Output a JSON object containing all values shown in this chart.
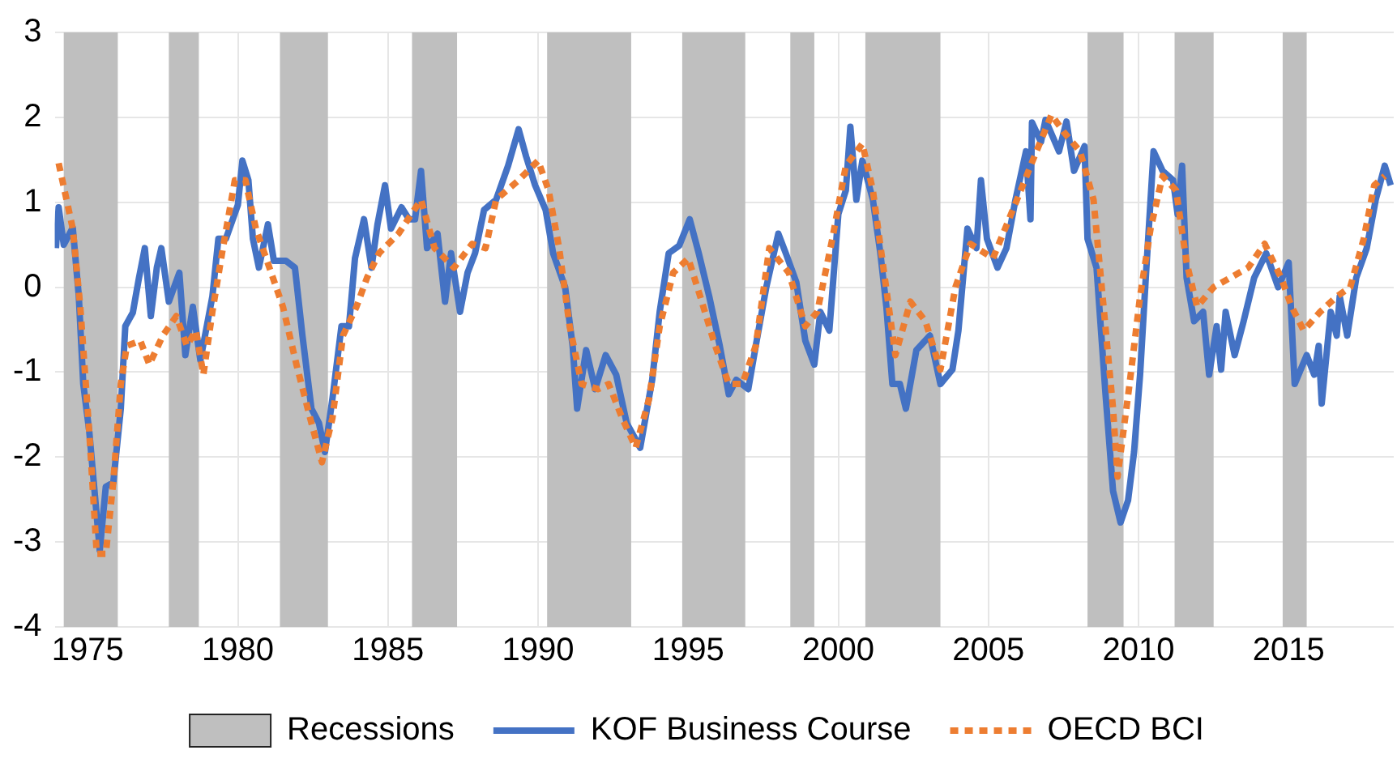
{
  "chart_data": {
    "type": "line",
    "xlim": [
      1973.9,
      2018.5
    ],
    "xticks": [
      1975,
      1980,
      1985,
      1990,
      1995,
      2000,
      2005,
      2010,
      2015
    ],
    "ylim": [
      -4,
      3
    ],
    "yticks": [
      -4,
      -3,
      -2,
      -1,
      0,
      1,
      2,
      3
    ],
    "grid": true,
    "legend": "bottom",
    "marker": "none",
    "bands": [
      {
        "axis": "x",
        "from": 1974.2,
        "to": 1976.0,
        "label": "Recessions",
        "color": "#bfbfbf"
      },
      {
        "axis": "x",
        "from": 1977.7,
        "to": 1978.7,
        "color": "#bfbfbf"
      },
      {
        "axis": "x",
        "from": 1981.4,
        "to": 1983.0,
        "color": "#bfbfbf"
      },
      {
        "axis": "x",
        "from": 1985.8,
        "to": 1987.3,
        "color": "#bfbfbf"
      },
      {
        "axis": "x",
        "from": 1990.3,
        "to": 1993.1,
        "color": "#bfbfbf"
      },
      {
        "axis": "x",
        "from": 1994.8,
        "to": 1996.9,
        "color": "#bfbfbf"
      },
      {
        "axis": "x",
        "from": 1998.4,
        "to": 1999.2,
        "color": "#bfbfbf"
      },
      {
        "axis": "x",
        "from": 2000.9,
        "to": 2003.4,
        "color": "#bfbfbf"
      },
      {
        "axis": "x",
        "from": 2008.3,
        "to": 2009.5,
        "color": "#bfbfbf"
      },
      {
        "axis": "x",
        "from": 2011.2,
        "to": 2012.5,
        "color": "#bfbfbf"
      },
      {
        "axis": "x",
        "from": 2014.8,
        "to": 2015.6,
        "color": "#bfbfbf"
      }
    ],
    "series": [
      {
        "name": "KOF Business Course",
        "color": "#4472c4",
        "line_style": "solid",
        "x": [
          1973.94,
          1974.03,
          1974.2,
          1974.5,
          1974.7,
          1974.85,
          1975.05,
          1975.2,
          1975.4,
          1975.6,
          1975.85,
          1976.1,
          1976.25,
          1976.5,
          1976.7,
          1976.9,
          1977.1,
          1977.3,
          1977.45,
          1977.7,
          1978.05,
          1978.25,
          1978.5,
          1978.75,
          1979.15,
          1979.35,
          1979.6,
          1980,
          1980.15,
          1980.35,
          1980.5,
          1980.7,
          1981,
          1981.2,
          1981.6,
          1981.9,
          1982.15,
          1982.45,
          1982.7,
          1982.9,
          1983.15,
          1983.45,
          1983.7,
          1983.9,
          1984.2,
          1984.45,
          1984.65,
          1984.9,
          1985.1,
          1985.45,
          1985.7,
          1985.9,
          1986.1,
          1986.3,
          1986.65,
          1986.9,
          1987.1,
          1987.4,
          1987.65,
          1987.9,
          1988.2,
          1988.6,
          1989,
          1989.35,
          1989.6,
          1989.9,
          1990.25,
          1990.5,
          1990.9,
          1991.15,
          1991.3,
          1991.6,
          1991.9,
          1992.25,
          1992.6,
          1992.95,
          1993.4,
          1993.8,
          1994.05,
          1994.35,
          1994.7,
          1995.05,
          1995.35,
          1995.7,
          1996.05,
          1996.35,
          1996.6,
          1997,
          1997.25,
          1997.6,
          1998,
          1998.25,
          1998.6,
          1998.9,
          1999.2,
          1999.4,
          1999.7,
          2000,
          2000.25,
          2000.4,
          2000.6,
          2000.8,
          2001.15,
          2001.4,
          2001.6,
          2001.8,
          2002.05,
          2002.25,
          2002.6,
          2003.05,
          2003.4,
          2003.8,
          2004,
          2004.3,
          2004.6,
          2004.75,
          2004.95,
          2005.3,
          2005.6,
          2005.9,
          2006.25,
          2006.4,
          2006.45,
          2006.75,
          2006.9,
          2007.35,
          2007.6,
          2007.85,
          2008.2,
          2008.3,
          2008.6,
          2008.9,
          2009.15,
          2009.4,
          2009.65,
          2009.85,
          2010.05,
          2010.25,
          2010.5,
          2010.8,
          2011.15,
          2011.3,
          2011.45,
          2011.6,
          2011.85,
          2012.15,
          2012.35,
          2012.6,
          2012.75,
          2012.9,
          2013.2,
          2013.5,
          2013.85,
          2014.25,
          2014.65,
          2015,
          2015.2,
          2015.6,
          2015.85,
          2016,
          2016.1,
          2016.4,
          2016.6,
          2016.7,
          2016.95,
          2017.25,
          2017.6,
          2017.9,
          2018.2,
          2018.4
        ],
        "values": [
          0.46,
          0.94,
          0.5,
          0.7,
          -0.1,
          -1.14,
          -1.7,
          -2.3,
          -3.1,
          -2.35,
          -2.3,
          -1.43,
          -0.46,
          -0.3,
          0.1,
          0.46,
          -0.34,
          0.23,
          0.46,
          -0.17,
          0.17,
          -0.8,
          -0.23,
          -0.86,
          -0.11,
          0.57,
          0.57,
          0.97,
          1.49,
          1.26,
          0.57,
          0.23,
          0.74,
          0.31,
          0.31,
          0.23,
          -0.57,
          -1.43,
          -1.6,
          -1.94,
          -1.31,
          -0.46,
          -0.46,
          0.34,
          0.8,
          0.23,
          0.74,
          1.2,
          0.69,
          0.94,
          0.8,
          0.8,
          1.37,
          0.46,
          0.63,
          -0.17,
          0.4,
          -0.29,
          0.17,
          0.4,
          0.91,
          1.03,
          1.43,
          1.86,
          1.54,
          1.2,
          0.91,
          0.4,
          0,
          -0.69,
          -1.43,
          -0.74,
          -1.2,
          -0.8,
          -1.03,
          -1.6,
          -1.89,
          -1.09,
          -0.29,
          0.4,
          0.49,
          0.8,
          0.4,
          -0.11,
          -0.69,
          -1.26,
          -1.09,
          -1.2,
          -0.69,
          0,
          0.63,
          0.4,
          0.06,
          -0.63,
          -0.91,
          -0.29,
          -0.51,
          0.86,
          1.14,
          1.89,
          1.03,
          1.49,
          1.03,
          0.4,
          -0.23,
          -1.14,
          -1.14,
          -1.43,
          -0.74,
          -0.57,
          -1.14,
          -0.97,
          -0.51,
          0.69,
          0.46,
          1.26,
          0.57,
          0.23,
          0.46,
          1.03,
          1.6,
          0.8,
          1.94,
          1.71,
          1.97,
          1.6,
          1.95,
          1.37,
          1.66,
          0.57,
          0.23,
          -1.26,
          -2.4,
          -2.77,
          -2.51,
          -1.94,
          -1.03,
          0.17,
          1.6,
          1.37,
          1.26,
          0.86,
          1.43,
          0.11,
          -0.4,
          -0.29,
          -1.03,
          -0.46,
          -0.97,
          -0.29,
          -0.8,
          -0.4,
          0.11,
          0.4,
          0,
          0.29,
          -1.14,
          -0.8,
          -1.03,
          -0.69,
          -1.37,
          -0.29,
          -0.57,
          -0.11,
          -0.57,
          0.11,
          0.46,
          1.03,
          1.43,
          1.2
        ]
      },
      {
        "name": "OECD BCI",
        "color": "#ed7d31",
        "line_style": "dashed",
        "x": [
          1974.03,
          1974.5,
          1974.75,
          1975.05,
          1975.3,
          1975.6,
          1975.85,
          1976.1,
          1976.3,
          1976.75,
          1977.05,
          1977.5,
          1977.95,
          1978.3,
          1978.6,
          1978.85,
          1979.15,
          1979.5,
          1979.9,
          1980.25,
          1980.6,
          1981.05,
          1981.5,
          1981.95,
          1982.45,
          1982.8,
          1983.15,
          1983.5,
          1983.95,
          1984.3,
          1984.7,
          1985.35,
          1986.1,
          1986.55,
          1987.2,
          1987.8,
          1988.25,
          1988.6,
          1989.35,
          1990,
          1990.35,
          1990.7,
          1991.05,
          1991.45,
          1992,
          1992.35,
          1992.8,
          1993.25,
          1993.7,
          1994.05,
          1994.5,
          1995,
          1995.4,
          1995.9,
          1996.35,
          1996.8,
          1997.25,
          1997.7,
          1998.35,
          1998.9,
          1999.3,
          1999.8,
          2000.25,
          2000.8,
          2001.15,
          2001.5,
          2001.9,
          2002.4,
          2002.9,
          2003.4,
          2003.9,
          2004.4,
          2005.15,
          2005.95,
          2006.6,
          2007.1,
          2007.5,
          2008.05,
          2008.5,
          2008.85,
          2009.15,
          2009.3,
          2009.7,
          2010.05,
          2010.4,
          2010.8,
          2011.25,
          2011.6,
          2011.95,
          2012.5,
          2013.05,
          2013.65,
          2014.2,
          2014.75,
          2015.1,
          2015.5,
          2016.05,
          2016.6,
          2017.05,
          2017.5,
          2017.85,
          2018.2
        ],
        "values": [
          1.46,
          0.69,
          -0.23,
          -1.71,
          -3.14,
          -3.14,
          -2.29,
          -1.14,
          -0.69,
          -0.63,
          -0.91,
          -0.57,
          -0.34,
          -0.69,
          -0.51,
          -1.03,
          -0.29,
          0.46,
          1.26,
          1.26,
          0.69,
          0.23,
          -0.23,
          -0.91,
          -1.6,
          -2.06,
          -1.54,
          -0.57,
          -0.23,
          0.11,
          0.4,
          0.63,
          1.03,
          0.46,
          0.23,
          0.51,
          0.46,
          1.03,
          1.26,
          1.49,
          1.14,
          0.46,
          -0.46,
          -1.14,
          -1.2,
          -1.14,
          -1.54,
          -1.89,
          -1.31,
          -0.46,
          0.17,
          0.34,
          -0.11,
          -0.69,
          -1.14,
          -1.14,
          -0.69,
          0.46,
          0.17,
          -0.46,
          -0.29,
          0.57,
          1.43,
          1.69,
          1.14,
          0.23,
          -0.8,
          -0.17,
          -0.4,
          -0.97,
          0,
          0.51,
          0.34,
          1.03,
          1.6,
          2.03,
          1.83,
          1.6,
          1.03,
          -0.29,
          -1.43,
          -2.23,
          -1.14,
          -0.11,
          0.69,
          1.31,
          1.14,
          0.29,
          -0.23,
          0,
          0.11,
          0.23,
          0.51,
          0.11,
          -0.23,
          -0.51,
          -0.29,
          -0.11,
          0,
          0.57,
          1.2,
          1.31
        ]
      }
    ]
  }
}
